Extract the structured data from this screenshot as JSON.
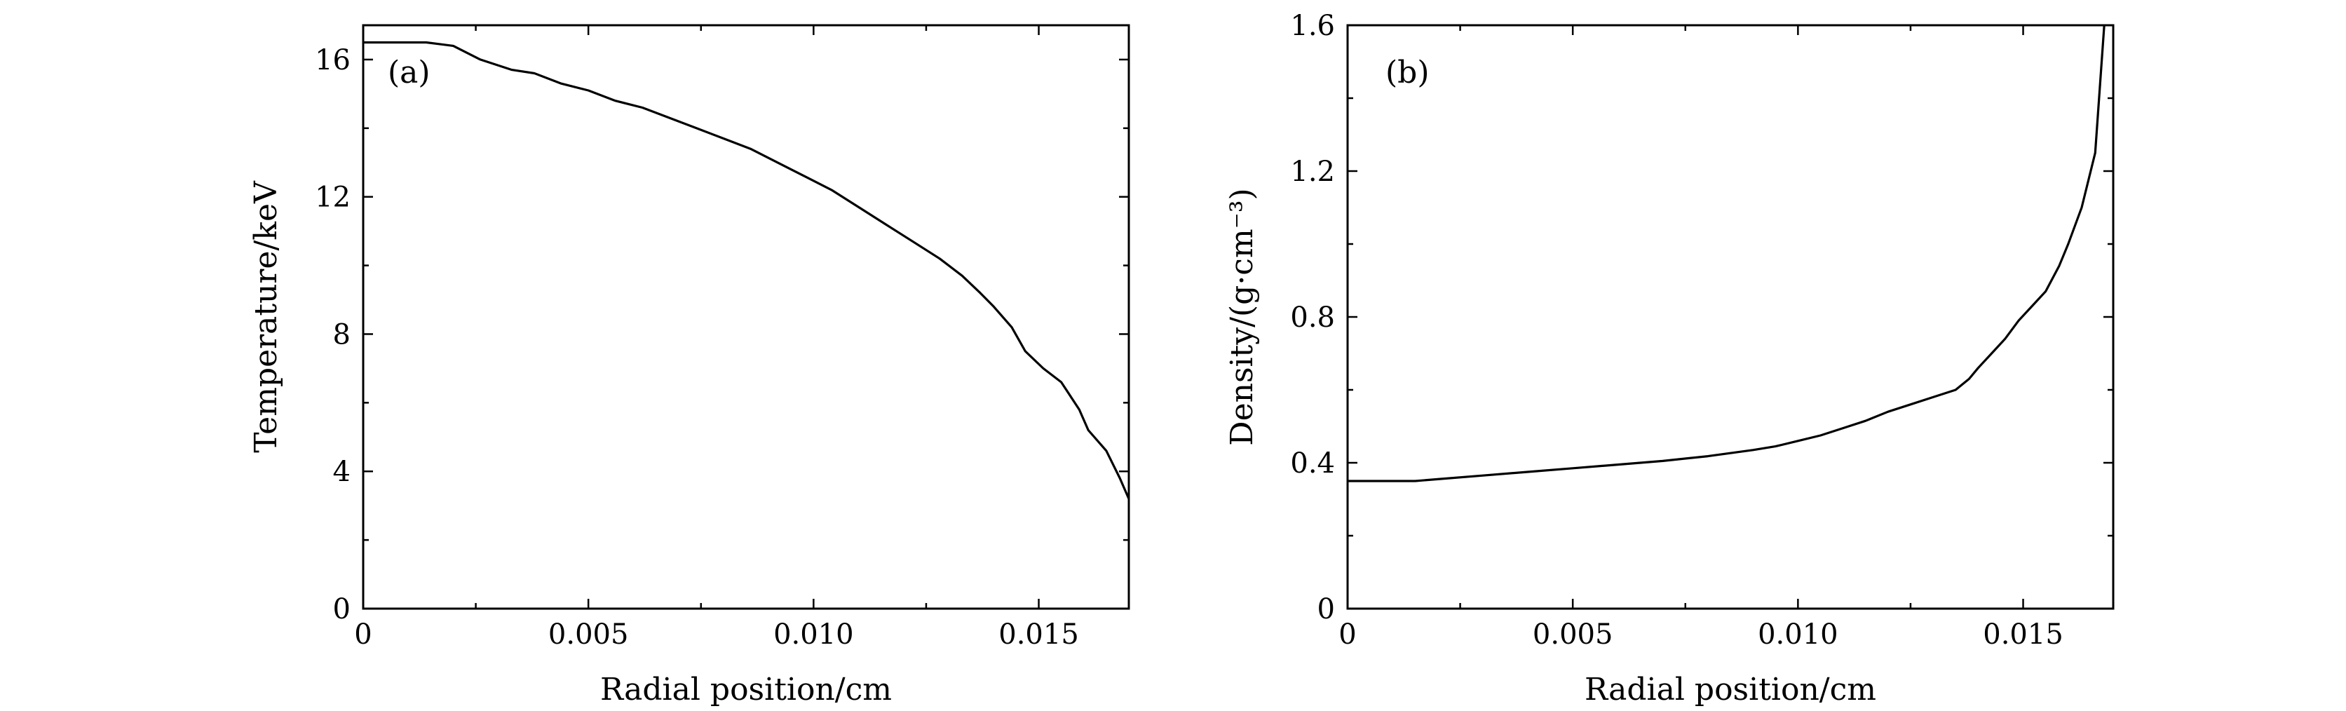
{
  "chart_data": [
    {
      "type": "line",
      "panel_label": "(a)",
      "xlabel": "Radial position/cm",
      "ylabel": "Temperature/keV",
      "xlim": [
        0,
        0.017
      ],
      "ylim": [
        0,
        17
      ],
      "x_ticks": [
        0,
        0.005,
        0.01,
        0.015
      ],
      "x_tick_labels": [
        "0",
        "0.005",
        "0.010",
        "0.015"
      ],
      "y_ticks": [
        0,
        4,
        8,
        12,
        16
      ],
      "y_tick_labels": [
        "0",
        "4",
        "8",
        "12",
        "16"
      ],
      "grid": false,
      "series": [
        {
          "x": [
            0,
            0.0006,
            0.0014,
            0.002,
            0.0026,
            0.0033,
            0.0038,
            0.0044,
            0.005,
            0.0056,
            0.0062,
            0.0068,
            0.0074,
            0.008,
            0.0086,
            0.0092,
            0.0098,
            0.0104,
            0.011,
            0.0116,
            0.0122,
            0.0128,
            0.0133,
            0.0137,
            0.014,
            0.0144,
            0.0147,
            0.0151,
            0.0155,
            0.0159,
            0.0161,
            0.0165,
            0.0168,
            0.017
          ],
          "y": [
            16.5,
            16.5,
            16.5,
            16.4,
            16.0,
            15.7,
            15.6,
            15.3,
            15.1,
            14.8,
            14.6,
            14.3,
            14.0,
            13.7,
            13.4,
            13.0,
            12.6,
            12.2,
            11.7,
            11.2,
            10.7,
            10.2,
            9.7,
            9.2,
            8.8,
            8.2,
            7.5,
            7.0,
            6.6,
            5.8,
            5.2,
            4.6,
            3.8,
            3.2
          ]
        }
      ]
    },
    {
      "type": "line",
      "panel_label": "(b)",
      "xlabel": "Radial position/cm",
      "ylabel": "Density/(g·cm⁻³)",
      "xlim": [
        0,
        0.017
      ],
      "ylim": [
        0,
        1.6
      ],
      "x_ticks": [
        0,
        0.005,
        0.01,
        0.015
      ],
      "x_tick_labels": [
        "0",
        "0.005",
        "0.010",
        "0.015"
      ],
      "y_ticks": [
        0,
        0.4,
        0.8,
        1.2,
        1.6
      ],
      "y_tick_labels": [
        "0",
        "0.4",
        "0.8",
        "1.2",
        "1.6"
      ],
      "grid": false,
      "series": [
        {
          "x": [
            0,
            0.0008,
            0.0015,
            0.002,
            0.003,
            0.004,
            0.005,
            0.006,
            0.007,
            0.008,
            0.009,
            0.0095,
            0.01,
            0.0105,
            0.011,
            0.0115,
            0.012,
            0.0125,
            0.013,
            0.0135,
            0.0138,
            0.014,
            0.0143,
            0.0146,
            0.0149,
            0.0152,
            0.0155,
            0.0158,
            0.016,
            0.0163,
            0.0166,
            0.0168
          ],
          "y": [
            0.35,
            0.35,
            0.35,
            0.355,
            0.365,
            0.375,
            0.385,
            0.395,
            0.405,
            0.418,
            0.435,
            0.445,
            0.46,
            0.475,
            0.495,
            0.515,
            0.54,
            0.56,
            0.58,
            0.6,
            0.63,
            0.66,
            0.7,
            0.74,
            0.79,
            0.83,
            0.87,
            0.94,
            1.0,
            1.1,
            1.25,
            1.6
          ]
        }
      ]
    }
  ]
}
